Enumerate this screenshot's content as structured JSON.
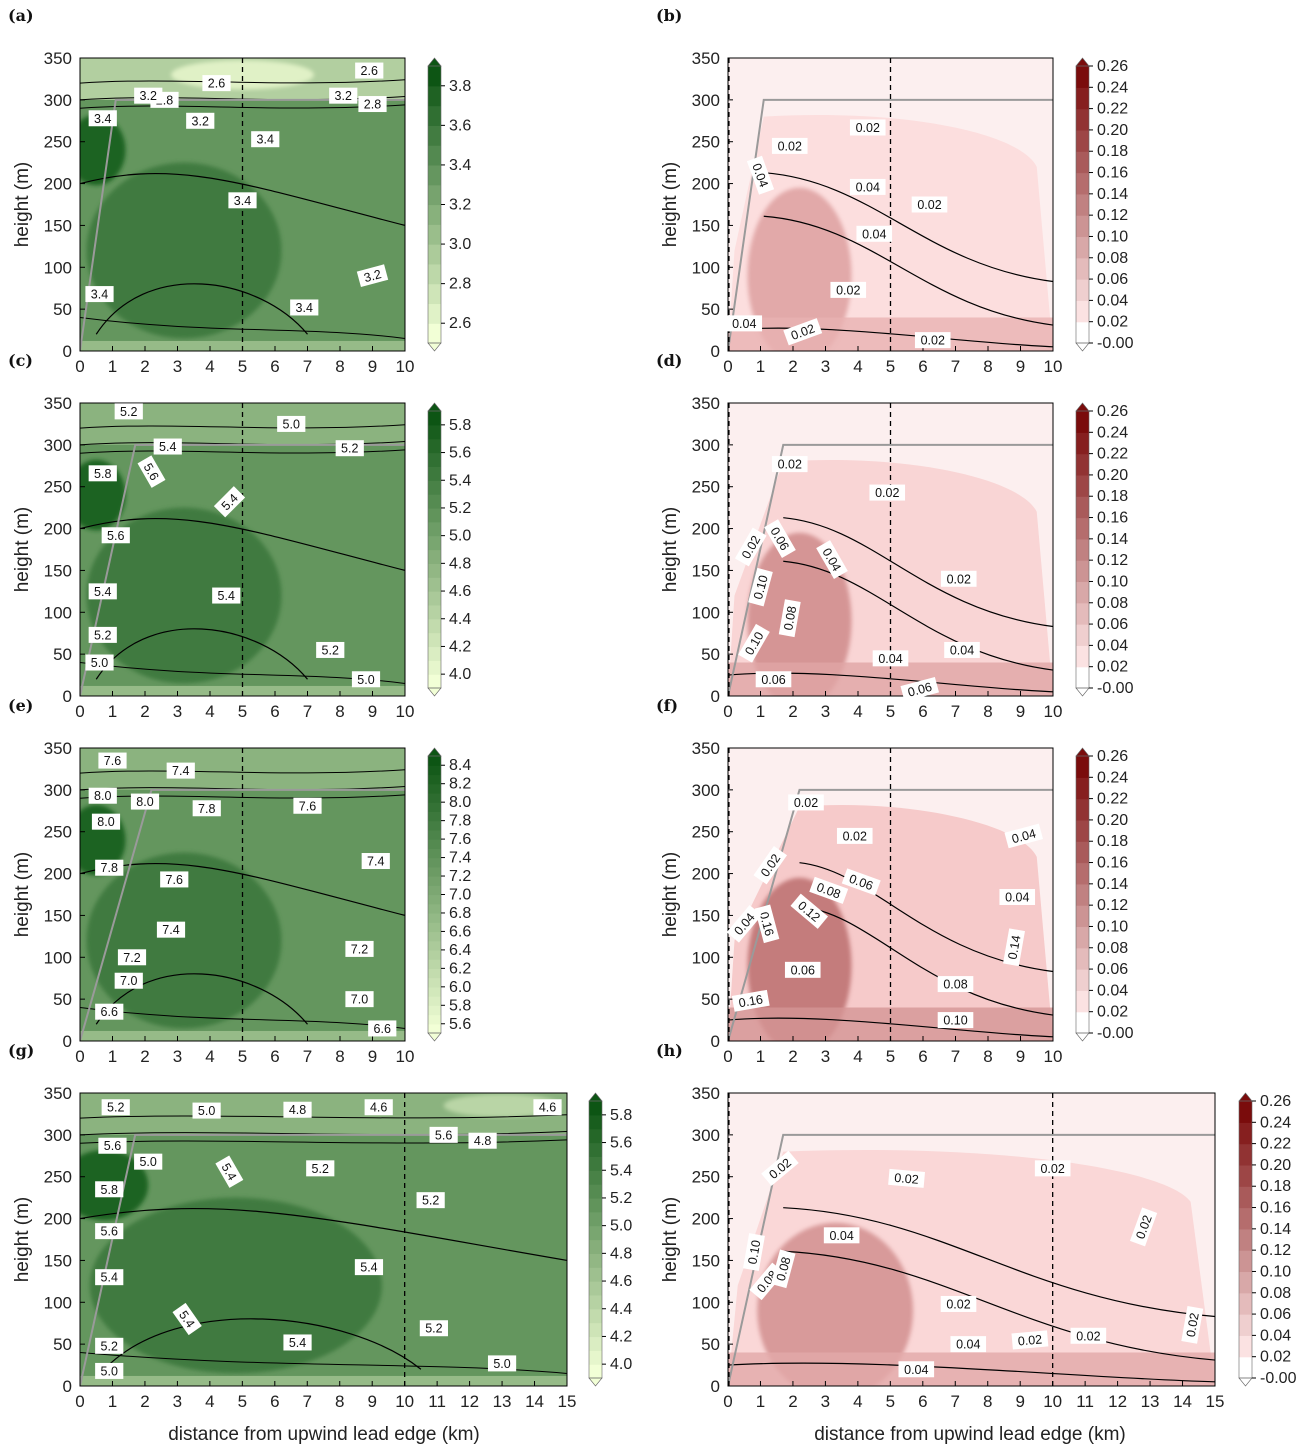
{
  "figure": {
    "xlabel": "distance from upwind lead edge (km)",
    "ylabel": "height (m)"
  },
  "colors": {
    "green_low": "#f2ffd6",
    "green_high": "#0d5514",
    "red_low": "#ffffff",
    "red_high": "#7a0c0c",
    "contour": "#000000",
    "ibl_line": "#9a9a9a"
  },
  "chart_data": [
    {
      "id": "a",
      "label": "(a)",
      "type": "contour",
      "colormap": "greens",
      "xlim": [
        0,
        10
      ],
      "ylim": [
        0,
        350
      ],
      "xticks": [
        0,
        1,
        2,
        3,
        4,
        5,
        6,
        7,
        8,
        9,
        10
      ],
      "yticks": [
        0,
        50,
        100,
        150,
        200,
        250,
        300,
        350
      ],
      "vline_x": 5,
      "colorbar": {
        "ticks": [
          "2.6",
          "2.8",
          "3.0",
          "3.2",
          "3.4",
          "3.6",
          "3.8"
        ],
        "extend": "both"
      },
      "contour_labels": [
        "2.6",
        "2.6",
        "2.8",
        "2.8",
        "3.2",
        "3.2",
        "3.2",
        "3.4",
        "3.4",
        "3.4",
        "3.4",
        "3.4",
        "3.2"
      ]
    },
    {
      "id": "b",
      "label": "(b)",
      "type": "contour",
      "colormap": "reds",
      "xlim": [
        0,
        10
      ],
      "ylim": [
        0,
        350
      ],
      "xticks": [
        0,
        1,
        2,
        3,
        4,
        5,
        6,
        7,
        8,
        9,
        10
      ],
      "yticks": [
        0,
        50,
        100,
        150,
        200,
        250,
        300,
        350
      ],
      "vline_x": 5,
      "colorbar": {
        "ticks": [
          "0.26",
          "0.24",
          "0.22",
          "0.20",
          "0.18",
          "0.16",
          "0.14",
          "0.12",
          "0.10",
          "0.08",
          "0.06",
          "0.04",
          "0.02",
          "-0.00"
        ],
        "extend": "both"
      },
      "contour_labels": [
        "0.02",
        "0.02",
        "0.04",
        "0.04",
        "0.04",
        "0.02",
        "0.02",
        "0.04",
        "0.02",
        "0.02"
      ]
    },
    {
      "id": "c",
      "label": "(c)",
      "type": "contour",
      "colormap": "greens",
      "xlim": [
        0,
        10
      ],
      "ylim": [
        0,
        350
      ],
      "xticks": [
        0,
        1,
        2,
        3,
        4,
        5,
        6,
        7,
        8,
        9,
        10
      ],
      "yticks": [
        0,
        50,
        100,
        150,
        200,
        250,
        300,
        350
      ],
      "vline_x": 5,
      "colorbar": {
        "ticks": [
          "4.0",
          "4.2",
          "4.4",
          "4.6",
          "4.8",
          "5.0",
          "5.2",
          "5.4",
          "5.6",
          "5.8"
        ],
        "extend": "both"
      },
      "contour_labels": [
        "5.2",
        "5.0",
        "5.4",
        "5.2",
        "5.8",
        "5.6",
        "5.4",
        "5.6",
        "5.4",
        "5.4",
        "5.2",
        "5.2",
        "5.0",
        "5.0"
      ]
    },
    {
      "id": "d",
      "label": "(d)",
      "type": "contour",
      "colormap": "reds",
      "xlim": [
        0,
        10
      ],
      "ylim": [
        0,
        350
      ],
      "xticks": [
        0,
        1,
        2,
        3,
        4,
        5,
        6,
        7,
        8,
        9,
        10
      ],
      "yticks": [
        0,
        50,
        100,
        150,
        200,
        250,
        300,
        350
      ],
      "vline_x": 5,
      "colorbar": {
        "ticks": [
          "0.26",
          "0.24",
          "0.22",
          "0.20",
          "0.18",
          "0.16",
          "0.14",
          "0.12",
          "0.10",
          "0.08",
          "0.06",
          "0.04",
          "0.02",
          "-0.00"
        ],
        "extend": "both"
      },
      "contour_labels": [
        "0.02",
        "0.02",
        "0.06",
        "0.04",
        "0.02",
        "0.10",
        "0.08",
        "0.02",
        "0.10",
        "0.04",
        "0.04",
        "0.06",
        "0.06"
      ]
    },
    {
      "id": "e",
      "label": "(e)",
      "type": "contour",
      "colormap": "greens",
      "xlim": [
        0,
        10
      ],
      "ylim": [
        0,
        350
      ],
      "xticks": [
        0,
        1,
        2,
        3,
        4,
        5,
        6,
        7,
        8,
        9,
        10
      ],
      "yticks": [
        0,
        50,
        100,
        150,
        200,
        250,
        300,
        350
      ],
      "vline_x": 5,
      "colorbar": {
        "ticks": [
          "5.6",
          "5.8",
          "6.0",
          "6.2",
          "6.4",
          "6.6",
          "6.8",
          "7.0",
          "7.2",
          "7.4",
          "7.6",
          "7.8",
          "8.0",
          "8.2",
          "8.4"
        ],
        "extend": "both"
      },
      "contour_labels": [
        "7.6",
        "7.4",
        "8.0",
        "8.0",
        "7.8",
        "7.6",
        "8.0",
        "7.8",
        "7.4",
        "7.6",
        "7.4",
        "7.2",
        "7.2",
        "7.0",
        "7.0",
        "6.6",
        "6.6"
      ]
    },
    {
      "id": "f",
      "label": "(f)",
      "type": "contour",
      "colormap": "reds",
      "xlim": [
        0,
        10
      ],
      "ylim": [
        0,
        350
      ],
      "xticks": [
        0,
        1,
        2,
        3,
        4,
        5,
        6,
        7,
        8,
        9,
        10
      ],
      "yticks": [
        0,
        50,
        100,
        150,
        200,
        250,
        300,
        350
      ],
      "vline_x": 5,
      "colorbar": {
        "ticks": [
          "0.26",
          "0.24",
          "0.22",
          "0.20",
          "0.18",
          "0.16",
          "0.14",
          "0.12",
          "0.10",
          "0.08",
          "0.06",
          "0.04",
          "0.02",
          "-0.00"
        ],
        "extend": "both"
      },
      "contour_labels": [
        "0.02",
        "0.02",
        "0.04",
        "0.02",
        "0.06",
        "0.08",
        "0.04",
        "0.12",
        "0.16",
        "0.04",
        "0.14",
        "0.06",
        "0.16",
        "0.08",
        "0.10"
      ]
    },
    {
      "id": "g",
      "label": "(g)",
      "type": "contour",
      "colormap": "greens",
      "xlim": [
        0,
        15
      ],
      "ylim": [
        0,
        350
      ],
      "xticks": [
        0,
        1,
        2,
        3,
        4,
        5,
        6,
        7,
        8,
        9,
        10,
        11,
        12,
        13,
        14,
        15
      ],
      "yticks": [
        0,
        50,
        100,
        150,
        200,
        250,
        300,
        350
      ],
      "vline_x": 10,
      "colorbar": {
        "ticks": [
          "4.0",
          "4.2",
          "4.4",
          "4.6",
          "4.8",
          "5.0",
          "5.2",
          "5.4",
          "5.6",
          "5.8"
        ],
        "extend": "both"
      },
      "contour_labels": [
        "5.2",
        "5.0",
        "4.8",
        "4.6",
        "4.6",
        "5.6",
        "5.6",
        "4.8",
        "5.0",
        "5.4",
        "5.2",
        "5.8",
        "5.2",
        "5.6",
        "5.4",
        "5.4",
        "5.4",
        "5.4",
        "5.2",
        "5.2",
        "5.0",
        "5.0"
      ]
    },
    {
      "id": "h",
      "label": "(h)",
      "type": "contour",
      "colormap": "reds",
      "xlim": [
        0,
        15
      ],
      "ylim": [
        0,
        350
      ],
      "xticks": [
        0,
        1,
        2,
        3,
        4,
        5,
        6,
        7,
        8,
        9,
        10,
        11,
        12,
        13,
        14,
        15
      ],
      "yticks": [
        0,
        50,
        100,
        150,
        200,
        250,
        300,
        350
      ],
      "vline_x": 10,
      "colorbar": {
        "ticks": [
          "0.26",
          "0.24",
          "0.22",
          "0.20",
          "0.18",
          "0.16",
          "0.14",
          "0.12",
          "0.10",
          "0.08",
          "0.06",
          "0.04",
          "0.02",
          "-0.00"
        ],
        "extend": "both"
      },
      "contour_labels": [
        "0.02",
        "0.02",
        "0.02",
        "0.04",
        "0.02",
        "0.10",
        "0.08",
        "0.02",
        "0.08",
        "0.02",
        "0.02",
        "0.02",
        "0.04",
        "0.04"
      ]
    }
  ]
}
